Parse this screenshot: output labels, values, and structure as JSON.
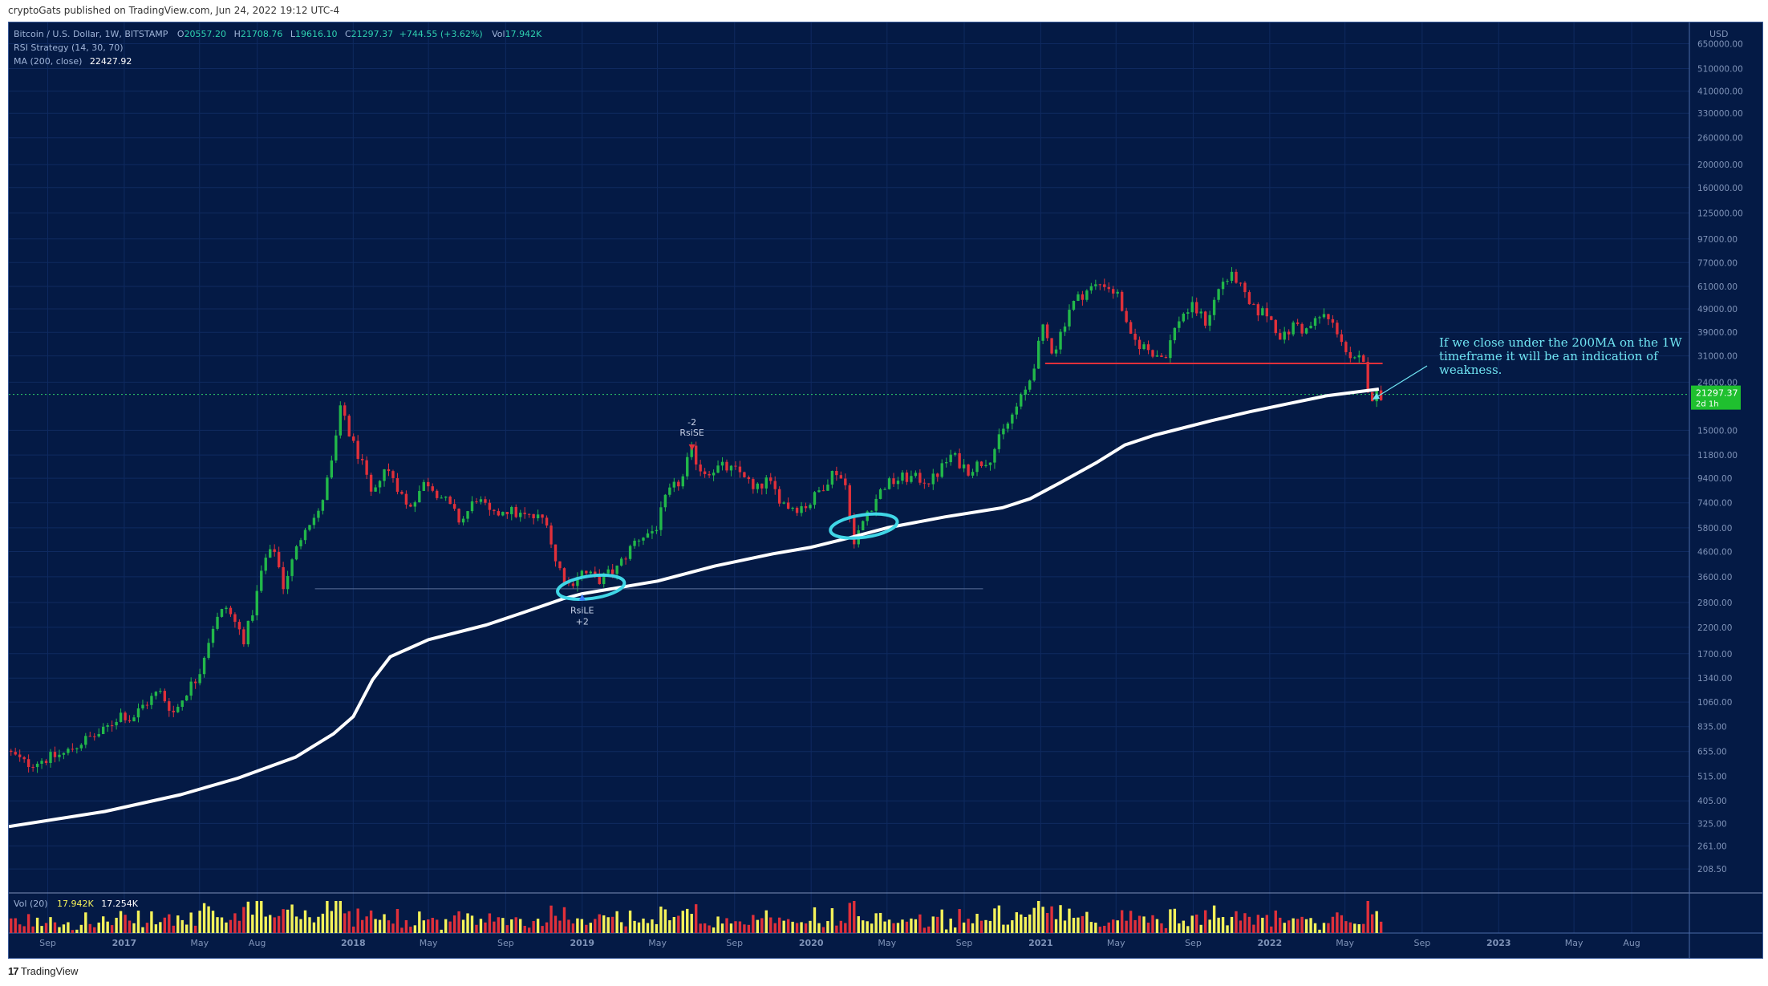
{
  "header": {
    "published": "cryptoGats published on TradingView.com, Jun 24, 2022 19:12 UTC-4"
  },
  "legend": {
    "symbol": "Bitcoin / U.S. Dollar, 1W, BITSTAMP",
    "open_label": "O",
    "open": "20557.20",
    "high_label": "H",
    "high": "21708.76",
    "low_label": "L",
    "low": "19616.10",
    "close_label": "C",
    "close": "21297.37",
    "change": "+744.55 (+3.62%)",
    "vol_label": "Vol",
    "vol": "17.942K",
    "rsi": "RSI Strategy (14, 30, 70)",
    "ma": "MA (200, close)",
    "ma_value": "22427.92"
  },
  "volume_legend": {
    "label": "Vol (20)",
    "v1": "17.942K",
    "v2": "17.254K"
  },
  "price_scale": {
    "currency": "USD",
    "last_price": "21297.37",
    "countdown": "2d 1h"
  },
  "signals": {
    "short_qty": "-2",
    "short_label": "RsiSE",
    "long_label": "RsiLE",
    "long_qty": "+2"
  },
  "annotation": {
    "line1": "If we close under the 200MA on the 1W",
    "line2": "timeframe it will be an indication of",
    "line3": "weakness."
  },
  "footer": {
    "brand": "TradingView"
  },
  "colors": {
    "background": "#041a45",
    "up": "#22b84a",
    "down": "#e0303a",
    "ma": "#ffffff",
    "highlight": "#40d6e6",
    "resistance": "#e0303a",
    "volume_up": "#f4f25a",
    "volume_down": "#e0303a"
  },
  "chart_data": {
    "type": "candlestick",
    "title": "Bitcoin / U.S. Dollar, 1W, BITSTAMP",
    "y_scale": "log",
    "ylim": [
      165,
      800000
    ],
    "y_ticks": [
      650000,
      510000,
      410000,
      330000,
      260000,
      200000,
      160000,
      125000,
      97000,
      77000,
      61000,
      49000,
      39000,
      31000,
      24000,
      15000,
      11800,
      9400,
      7400,
      5800,
      4600,
      3600,
      2800,
      2200,
      1700,
      1340,
      1060,
      835,
      655,
      515,
      405,
      325,
      261,
      208.5
    ],
    "y_tick_labels": [
      "650000.00",
      "510000.00",
      "410000.00",
      "330000.00",
      "260000.00",
      "200000.00",
      "160000.00",
      "125000.00",
      "97000.00",
      "77000.00",
      "61000.00",
      "49000.00",
      "39000.00",
      "31000.00",
      "24000.00",
      "15000.00",
      "11800.00",
      "9400.00",
      "7400.00",
      "5800.00",
      "4600.00",
      "3600.00",
      "2800.00",
      "2200.00",
      "1700.00",
      "1340.00",
      "1060.00",
      "835.00",
      "655.00",
      "515.00",
      "405.00",
      "325.00",
      "261.00",
      "208.50"
    ],
    "xlim": [
      "2016-07-01",
      "2023-11-01"
    ],
    "x_ticks": [
      "2016-09-01",
      "2017-01-01",
      "2017-05-01",
      "2017-08-01",
      "2018-01-01",
      "2018-05-01",
      "2018-09-01",
      "2019-01-01",
      "2019-05-01",
      "2019-09-01",
      "2020-01-01",
      "2020-05-01",
      "2020-09-01",
      "2021-01-01",
      "2021-05-01",
      "2021-09-01",
      "2022-01-01",
      "2022-05-01",
      "2022-09-01",
      "2023-01-01",
      "2023-05-01",
      "2023-08-01"
    ],
    "x_tick_labels": [
      "Sep",
      "2017",
      "May",
      "Aug",
      "2018",
      "May",
      "Sep",
      "2019",
      "May",
      "Sep",
      "2020",
      "May",
      "Sep",
      "2021",
      "May",
      "Sep",
      "2022",
      "May",
      "Sep",
      "2023",
      "May",
      "Aug"
    ],
    "price_path": [
      [
        "2016-07-01",
        660
      ],
      [
        "2016-08-01",
        580
      ],
      [
        "2016-09-01",
        610
      ],
      [
        "2016-10-01",
        640
      ],
      [
        "2016-11-01",
        730
      ],
      [
        "2016-12-01",
        790
      ],
      [
        "2017-01-01",
        960
      ],
      [
        "2017-01-15",
        890
      ],
      [
        "2017-02-01",
        1010
      ],
      [
        "2017-03-01",
        1180
      ],
      [
        "2017-03-25",
        950
      ],
      [
        "2017-04-15",
        1200
      ],
      [
        "2017-05-01",
        1350
      ],
      [
        "2017-05-25",
        2200
      ],
      [
        "2017-06-15",
        2700
      ],
      [
        "2017-07-15",
        1950
      ],
      [
        "2017-08-01",
        2800
      ],
      [
        "2017-08-15",
        4200
      ],
      [
        "2017-09-01",
        4700
      ],
      [
        "2017-09-15",
        3300
      ],
      [
        "2017-10-01",
        4300
      ],
      [
        "2017-10-20",
        6000
      ],
      [
        "2017-11-10",
        6600
      ],
      [
        "2017-12-01",
        10800
      ],
      [
        "2017-12-17",
        19500
      ],
      [
        "2017-12-31",
        13800
      ],
      [
        "2018-01-15",
        11500
      ],
      [
        "2018-02-05",
        7500
      ],
      [
        "2018-02-20",
        10500
      ],
      [
        "2018-03-10",
        9500
      ],
      [
        "2018-04-01",
        7000
      ],
      [
        "2018-05-01",
        9200
      ],
      [
        "2018-06-01",
        7500
      ],
      [
        "2018-06-25",
        6100
      ],
      [
        "2018-07-20",
        7800
      ],
      [
        "2018-08-15",
        6400
      ],
      [
        "2018-09-01",
        7000
      ],
      [
        "2018-10-01",
        6500
      ],
      [
        "2018-11-10",
        6300
      ],
      [
        "2018-11-20",
        4300
      ],
      [
        "2018-12-15",
        3300
      ],
      [
        "2019-01-01",
        3800
      ],
      [
        "2019-02-01",
        3500
      ],
      [
        "2019-03-01",
        3900
      ],
      [
        "2019-04-01",
        5200
      ],
      [
        "2019-05-01",
        5700
      ],
      [
        "2019-05-20",
        8000
      ],
      [
        "2019-06-15",
        9500
      ],
      [
        "2019-06-26",
        12500
      ],
      [
        "2019-07-15",
        10000
      ],
      [
        "2019-08-15",
        10500
      ],
      [
        "2019-09-20",
        9800
      ],
      [
        "2019-10-05",
        8200
      ],
      [
        "2019-10-26",
        9200
      ],
      [
        "2019-11-25",
        7200
      ],
      [
        "2019-12-15",
        7100
      ],
      [
        "2020-01-01",
        7300
      ],
      [
        "2020-02-12",
        10300
      ],
      [
        "2020-03-01",
        8600
      ],
      [
        "2020-03-13",
        4900
      ],
      [
        "2020-04-01",
        6700
      ],
      [
        "2020-05-01",
        8800
      ],
      [
        "2020-06-01",
        9500
      ],
      [
        "2020-07-15",
        9200
      ],
      [
        "2020-08-15",
        11800
      ],
      [
        "2020-09-10",
        10200
      ],
      [
        "2020-10-15",
        11500
      ],
      [
        "2020-11-10",
        15500
      ],
      [
        "2020-12-15",
        23000
      ],
      [
        "2021-01-08",
        40000
      ],
      [
        "2021-01-25",
        32000
      ],
      [
        "2021-02-20",
        50000
      ],
      [
        "2021-03-15",
        58000
      ],
      [
        "2021-04-14",
        63500
      ],
      [
        "2021-05-10",
        55000
      ],
      [
        "2021-05-25",
        37000
      ],
      [
        "2021-06-25",
        33000
      ],
      [
        "2021-07-20",
        30500
      ],
      [
        "2021-08-15",
        46000
      ],
      [
        "2021-09-05",
        50000
      ],
      [
        "2021-09-25",
        43000
      ],
      [
        "2021-10-20",
        64000
      ],
      [
        "2021-11-10",
        67500
      ],
      [
        "2021-12-05",
        49000
      ],
      [
        "2021-12-31",
        47000
      ],
      [
        "2022-01-25",
        36500
      ],
      [
        "2022-02-15",
        43000
      ],
      [
        "2022-03-01",
        39000
      ],
      [
        "2022-03-30",
        46500
      ],
      [
        "2022-04-25",
        39000
      ],
      [
        "2022-05-12",
        29000
      ],
      [
        "2022-06-01",
        30000
      ],
      [
        "2022-06-14",
        20500
      ],
      [
        "2022-06-24",
        21297.37
      ]
    ],
    "ma_200_path": [
      [
        "2016-07-01",
        315
      ],
      [
        "2016-12-01",
        365
      ],
      [
        "2017-04-01",
        430
      ],
      [
        "2017-07-01",
        505
      ],
      [
        "2017-10-01",
        620
      ],
      [
        "2017-12-01",
        780
      ],
      [
        "2018-01-01",
        920
      ],
      [
        "2018-02-01",
        1320
      ],
      [
        "2018-03-01",
        1650
      ],
      [
        "2018-05-01",
        1950
      ],
      [
        "2018-08-01",
        2250
      ],
      [
        "2018-10-01",
        2550
      ],
      [
        "2018-12-01",
        2900
      ],
      [
        "2019-01-01",
        3050
      ],
      [
        "2019-05-01",
        3450
      ],
      [
        "2019-08-01",
        4000
      ],
      [
        "2019-11-01",
        4500
      ],
      [
        "2020-01-01",
        4800
      ],
      [
        "2020-03-01",
        5250
      ],
      [
        "2020-05-01",
        5800
      ],
      [
        "2020-08-01",
        6450
      ],
      [
        "2020-11-01",
        7050
      ],
      [
        "2020-12-15",
        7700
      ],
      [
        "2021-02-01",
        9000
      ],
      [
        "2021-04-01",
        11000
      ],
      [
        "2021-05-15",
        13000
      ],
      [
        "2021-07-01",
        14300
      ],
      [
        "2021-10-01",
        16500
      ],
      [
        "2021-12-01",
        18000
      ],
      [
        "2022-02-01",
        19500
      ],
      [
        "2022-04-01",
        21000
      ],
      [
        "2022-06-24",
        22427.92
      ]
    ],
    "resistance_line": {
      "from": "2021-01-08",
      "to": "2022-06-30",
      "value": 28800
    },
    "support_line": {
      "from": "2017-11-01",
      "to": "2020-10-01",
      "value": 3200
    },
    "highlight_ellipses": [
      {
        "date": "2019-01-15",
        "value": 3250
      },
      {
        "date": "2020-03-25",
        "value": 5900
      }
    ],
    "signals": [
      {
        "date": "2019-06-25",
        "value": 13500,
        "type": "short",
        "label": "RsiSE",
        "qty": "-2"
      },
      {
        "date": "2019-01-01",
        "value": 2900,
        "type": "long",
        "label": "RsiLE",
        "qty": "+2"
      }
    ],
    "volume": {
      "label": "Vol (20)",
      "values_note": "weekly volume bars, yellow = up week, red = down week"
    }
  }
}
